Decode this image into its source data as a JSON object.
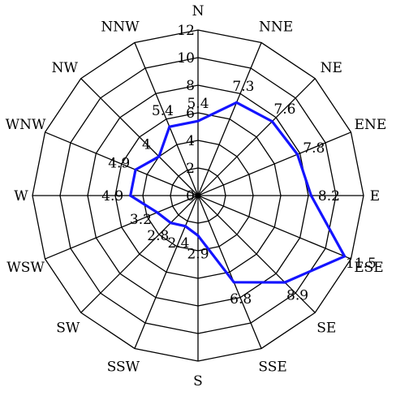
{
  "chart_data": {
    "type": "radar",
    "directions": [
      "N",
      "NNE",
      "NE",
      "ENE",
      "E",
      "ESE",
      "SE",
      "SSE",
      "S",
      "SSW",
      "SW",
      "WSW",
      "W",
      "WNW",
      "NW",
      "NNW"
    ],
    "values": [
      5.4,
      7.3,
      7.6,
      7.8,
      8.2,
      11.5,
      8.9,
      6.8,
      2.9,
      2.4,
      2.8,
      3.2,
      4.9,
      4.9,
      4,
      5.4
    ],
    "value_labels": [
      "5.4",
      "7.3",
      "7.6",
      "7.8",
      "8.2",
      "11.5",
      "8.9",
      "6.8",
      "2.9",
      "2.4",
      "2.8",
      "3.2",
      "4.9",
      "4.9",
      "4",
      "5.4"
    ],
    "ring_ticks": [
      "0",
      "2",
      "4",
      "6",
      "8",
      "10",
      "12"
    ],
    "rlim": [
      0,
      12
    ],
    "series_color": "#1414ff",
    "grid_color": "#000000"
  }
}
